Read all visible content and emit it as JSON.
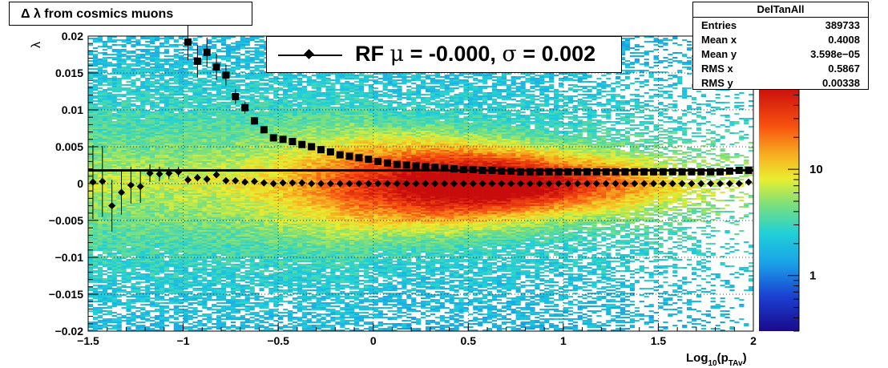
{
  "title": "Δ λ from cosmics muons",
  "chart_data": {
    "type": "heatmap",
    "xlabel": "Log",
    "xlabel_sub1": "10",
    "xlabel_paren": "(p",
    "xlabel_sub2": "TAv",
    "xlabel_close": ")",
    "ylabel": "λ",
    "xlim": [
      -1.5,
      2
    ],
    "ylim": [
      -0.02,
      0.02
    ],
    "x_ticks": [
      "−1.5",
      "−1",
      "−0.5",
      "0",
      "0.5",
      "1",
      "1.5",
      "2"
    ],
    "x_tick_values": [
      -1.5,
      -1,
      -0.5,
      0,
      0.5,
      1,
      1.5,
      2
    ],
    "y_ticks": [
      "0.02",
      "0.015",
      "0.01",
      "0.005",
      "0",
      "−0.005",
      "−0.01",
      "−0.015",
      "−0.02"
    ],
    "y_tick_values": [
      0.02,
      0.015,
      0.01,
      0.005,
      0,
      -0.005,
      -0.01,
      -0.015,
      -0.02
    ],
    "grid": true,
    "colorbar_labels": [
      "10",
      "1"
    ],
    "colorbar_label_values": [
      10,
      1
    ],
    "colorbar_range": [
      0.3,
      60
    ],
    "fit_line_y": 0.0018,
    "series": [
      {
        "name": "",
        "marker": "square",
        "x": [
          -0.975,
          -0.925,
          -0.875,
          -0.825,
          -0.775,
          -0.725,
          -0.675,
          -0.625,
          -0.575,
          -0.525,
          -0.475,
          -0.425,
          -0.375,
          -0.325,
          -0.275,
          -0.225,
          -0.175,
          -0.125,
          -0.075,
          -0.025,
          0.025,
          0.075,
          0.125,
          0.175,
          0.225,
          0.275,
          0.325,
          0.375,
          0.425,
          0.475,
          0.525,
          0.575,
          0.625,
          0.675,
          0.725,
          0.775,
          0.825,
          0.875,
          0.925,
          0.975,
          1.025,
          1.075,
          1.125,
          1.175,
          1.225,
          1.275,
          1.325,
          1.375,
          1.425,
          1.475,
          1.525,
          1.575,
          1.625,
          1.675,
          1.725,
          1.775,
          1.825,
          1.875,
          1.925,
          1.975
        ],
        "y": [
          0.0192,
          0.0166,
          0.0178,
          0.0158,
          0.0147,
          0.0118,
          0.0103,
          0.0085,
          0.0073,
          0.0062,
          0.006,
          0.0057,
          0.0053,
          0.005,
          0.0046,
          0.0043,
          0.0039,
          0.0037,
          0.0035,
          0.0033,
          0.003,
          0.0028,
          0.0026,
          0.0025,
          0.0024,
          0.0023,
          0.0022,
          0.0021,
          0.002,
          0.0019,
          0.0019,
          0.0018,
          0.0018,
          0.0017,
          0.0017,
          0.0016,
          0.0016,
          0.0016,
          0.0016,
          0.0016,
          0.0016,
          0.0016,
          0.0016,
          0.0016,
          0.0016,
          0.0016,
          0.0016,
          0.0016,
          0.0016,
          0.0016,
          0.0016,
          0.0016,
          0.0016,
          0.0016,
          0.0016,
          0.0016,
          0.0016,
          0.0017,
          0.0018,
          0.0018
        ],
        "yerr": [
          0.0025,
          0.0022,
          0.002,
          0.0018,
          0.0014,
          0.001,
          0.0008,
          0.0005,
          0.0004,
          0.0003,
          0.0003,
          0.0002,
          0.0002,
          0.0002,
          0.0002,
          0.0002,
          0.0001,
          0.0001,
          0.0001,
          0.0001,
          0.0001,
          0.0001,
          0.0001,
          0.0001,
          0.0001,
          0.0001,
          0.0001,
          0.0001,
          0.0001,
          0.0001,
          0.0001,
          0.0001,
          0.0001,
          0.0001,
          0.0001,
          0.0001,
          0.0001,
          0.0001,
          0.0001,
          0.0001,
          0.0001,
          0.0001,
          0.0001,
          0.0001,
          0.0001,
          0.0001,
          0.0001,
          0.0001,
          0.0001,
          0.0001,
          0.0001,
          0.0001,
          0.0001,
          0.0001,
          0.0001,
          0.0001,
          0.0001,
          0.0001,
          0.0001,
          0.0001
        ]
      },
      {
        "name": "RF",
        "marker": "diamond",
        "x": [
          -1.475,
          -1.425,
          -1.375,
          -1.325,
          -1.275,
          -1.225,
          -1.175,
          -1.125,
          -1.075,
          -1.025,
          -0.975,
          -0.925,
          -0.875,
          -0.825,
          -0.775,
          -0.725,
          -0.675,
          -0.625,
          -0.575,
          -0.525,
          -0.475,
          -0.425,
          -0.375,
          -0.325,
          -0.275,
          -0.225,
          -0.175,
          -0.125,
          -0.075,
          -0.025,
          0.025,
          0.075,
          0.125,
          0.175,
          0.225,
          0.275,
          0.325,
          0.375,
          0.425,
          0.475,
          0.525,
          0.575,
          0.625,
          0.675,
          0.725,
          0.775,
          0.825,
          0.875,
          0.925,
          0.975,
          1.025,
          1.075,
          1.125,
          1.175,
          1.225,
          1.275,
          1.325,
          1.375,
          1.425,
          1.475,
          1.525,
          1.575,
          1.625,
          1.675,
          1.725,
          1.775,
          1.825,
          1.875,
          1.925,
          1.975
        ],
        "y": [
          0.0002,
          0.0003,
          -0.003,
          -0.0012,
          -0.0002,
          -0.0004,
          0.0014,
          0.0013,
          0.0014,
          0.0016,
          0.0005,
          0.0008,
          0.0006,
          0.0012,
          0.0004,
          0.0004,
          0.0002,
          0.0003,
          0.0001,
          0.0,
          0.0001,
          0.0001,
          0.0001,
          0.0,
          0.0,
          0.0,
          0.0,
          0.0,
          0.0,
          0.0,
          0.0,
          0.0,
          0.0,
          0.0,
          0.0,
          0.0,
          0.0,
          0.0,
          0.0,
          0.0,
          0.0,
          0.0,
          0.0,
          0.0,
          0.0,
          0.0,
          0.0,
          0.0,
          0.0,
          0.0,
          0.0,
          0.0,
          0.0,
          0.0,
          0.0,
          0.0,
          0.0,
          0.0,
          0.0,
          0.0,
          0.0,
          0.0,
          0.0,
          0.0,
          0.0,
          0.0,
          0.0,
          0.0,
          0.0,
          0.0002
        ],
        "yerr": [
          0.005,
          0.0048,
          0.0035,
          0.003,
          0.0025,
          0.0022,
          0.0012,
          0.001,
          0.0008,
          0.0007,
          0.0006,
          0.0005,
          0.0005,
          0.0004,
          0.0003,
          0.0003,
          0.0002,
          0.0002,
          0.0002,
          0.0001,
          0.0001,
          0.0001,
          0.0001,
          0.0001,
          0.0001,
          0.0001,
          0.0001,
          0.0001,
          0.0001,
          0.0001,
          0.0001,
          0.0001,
          0.0001,
          0.0001,
          0.0001,
          0.0001,
          0.0001,
          0.0001,
          0.0001,
          0.0001,
          0.0001,
          0.0001,
          0.0001,
          0.0001,
          0.0001,
          0.0001,
          0.0001,
          0.0001,
          0.0001,
          0.0001,
          0.0001,
          0.0001,
          0.0001,
          0.0001,
          0.0001,
          0.0001,
          0.0001,
          0.0001,
          0.0001,
          0.0001,
          0.0001,
          0.0001,
          0.0001,
          0.0001,
          0.0001,
          0.0001,
          0.0001,
          0.0001,
          0.0001,
          0.0001
        ]
      }
    ]
  },
  "legend": {
    "prefix": "RF ",
    "mu_symbol": "μ",
    "mu_text": " = -0.000, ",
    "sigma_symbol": "σ",
    "sigma_text": " =   0.002"
  },
  "stats": {
    "name": "DelTanAll",
    "rows": [
      {
        "key": "Entries",
        "value": "389733"
      },
      {
        "key": "Mean x",
        "value": "0.4008"
      },
      {
        "key": "Mean y",
        "value": "3.598e−05"
      },
      {
        "key": "RMS x",
        "value": "0.5867"
      },
      {
        "key": "RMS y",
        "value": "0.00338"
      }
    ]
  }
}
